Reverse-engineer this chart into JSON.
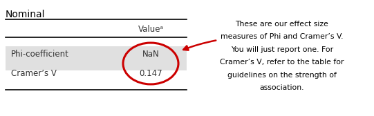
{
  "title": "Nominal",
  "col_header": "Valueᵃ",
  "rows": [
    {
      "label": "Phi-coefficient",
      "value": "NaN",
      "shaded": false
    },
    {
      "label": "Cramer’s V",
      "value": "0.147",
      "shaded": true
    }
  ],
  "annotation_lines": [
    "These are our effect size",
    "measures of Phi and Cramer’s V.",
    "You will just report one. For",
    "Cramer’s V, refer to the table for",
    "guidelines on the strength of",
    "association."
  ],
  "bg_color": "#ffffff",
  "shaded_color": "#e0e0e0",
  "circle_color": "#cc0000",
  "arrow_color": "#cc0000",
  "text_color": "#333333",
  "title_color": "#000000",
  "annotation_color": "#000000",
  "line_color": "#000000"
}
